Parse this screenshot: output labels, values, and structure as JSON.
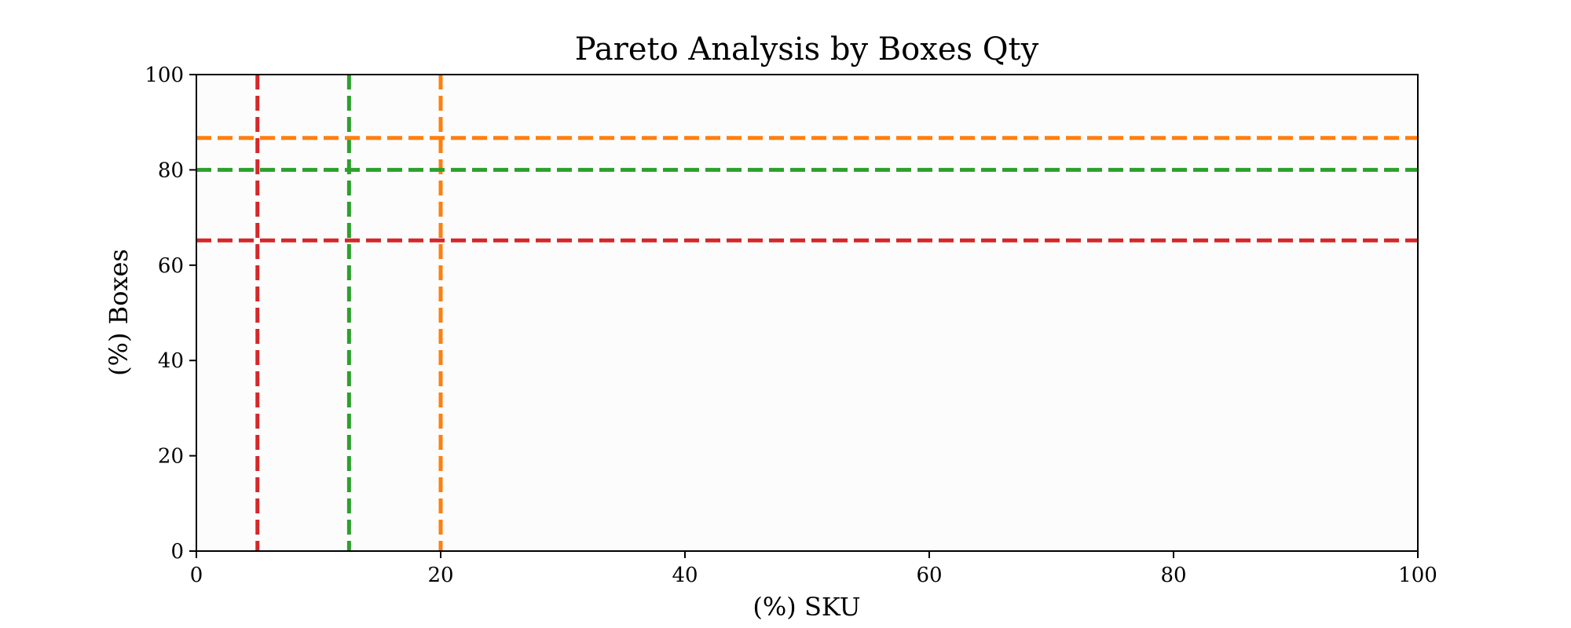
{
  "chart_data": {
    "type": "line",
    "title": "Pareto Analysis by Boxes Qty",
    "xlabel": "(%) SKU",
    "ylabel": "(%) Boxes",
    "xlim": [
      0,
      100
    ],
    "ylim": [
      0,
      100
    ],
    "x_ticks": [
      "0",
      "20",
      "40",
      "60",
      "80",
      "100"
    ],
    "y_ticks": [
      "0",
      "20",
      "40",
      "60",
      "80",
      "100"
    ],
    "grid": false,
    "legend": "none",
    "series": [],
    "reference_lines": [
      {
        "orientation": "vertical",
        "x": 5,
        "color": "#d62728",
        "style": "dashed"
      },
      {
        "orientation": "vertical",
        "x": 12.5,
        "color": "#2ca02c",
        "style": "dashed"
      },
      {
        "orientation": "vertical",
        "x": 20,
        "color": "#ff7f0e",
        "style": "dashed"
      },
      {
        "orientation": "horizontal",
        "y": 86.7,
        "color": "#ff7f0e",
        "style": "dashed"
      },
      {
        "orientation": "horizontal",
        "y": 80,
        "color": "#2ca02c",
        "style": "dashed"
      },
      {
        "orientation": "horizontal",
        "y": 65.2,
        "color": "#d62728",
        "style": "dashed"
      }
    ],
    "plot_background": "#fcfcfc"
  }
}
